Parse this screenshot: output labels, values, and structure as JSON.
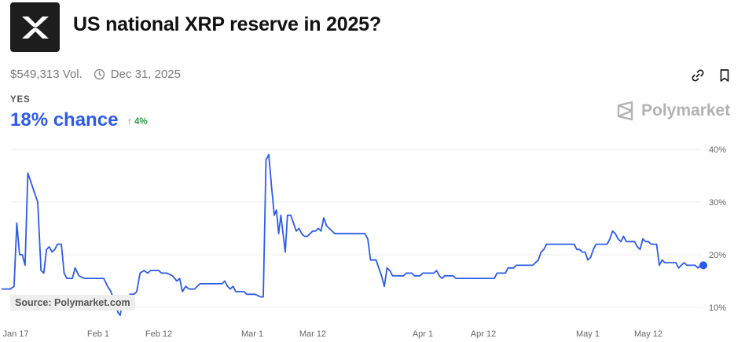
{
  "market": {
    "title": "US national XRP reserve in 2025?",
    "volume": "$549,313 Vol.",
    "end_date": "Dec 31, 2025",
    "outcome_label": "YES",
    "chance": "18% chance",
    "change": "4%",
    "brand": "Polymarket",
    "source": "Source: Polymarket.com",
    "logo_icon": "xrp-logo-icon",
    "accent_color": "#2d5bea",
    "up_color": "#2f9e44"
  },
  "chart_data": {
    "type": "line",
    "title": "",
    "xlabel": "",
    "ylabel": "",
    "ylim": [
      8,
      41
    ],
    "ytick_values": [
      10,
      20,
      30,
      40
    ],
    "ytick_labels": [
      "10%",
      "20%",
      "30%",
      "40%"
    ],
    "xtick_days": [
      16,
      31,
      42,
      59,
      70,
      90,
      101,
      120,
      131
    ],
    "xtick_labels": [
      "Jan 17",
      "Feb 1",
      "Feb 12",
      "Mar 1",
      "Mar 12",
      "Apr 1",
      "Apr 12",
      "May 1",
      "May 12"
    ],
    "grid": true,
    "series": [
      {
        "values": [
          [
            13.5,
            13.5
          ],
          [
            15.0,
            13.5
          ],
          [
            15.7,
            14.0
          ],
          [
            16.2,
            26.0
          ],
          [
            16.7,
            20.0
          ],
          [
            17.2,
            20.0
          ],
          [
            17.7,
            18.0
          ],
          [
            18.2,
            35.5
          ],
          [
            20.0,
            30.0
          ],
          [
            20.6,
            17.0
          ],
          [
            21.1,
            16.5
          ],
          [
            21.6,
            21.0
          ],
          [
            22.1,
            21.5
          ],
          [
            22.6,
            20.5
          ],
          [
            23.1,
            21.0
          ],
          [
            23.6,
            22.0
          ],
          [
            24.3,
            22.0
          ],
          [
            24.8,
            16.5
          ],
          [
            25.3,
            15.5
          ],
          [
            26.3,
            15.5
          ],
          [
            26.8,
            17.5
          ],
          [
            27.5,
            16.0
          ],
          [
            28.5,
            15.5
          ],
          [
            32.0,
            15.5
          ],
          [
            32.7,
            14.0
          ],
          [
            33.3,
            13.0
          ],
          [
            34.0,
            11.0
          ],
          [
            34.6,
            9.0
          ],
          [
            35.0,
            8.5
          ],
          [
            35.5,
            12.0
          ],
          [
            36.3,
            11.5
          ],
          [
            36.8,
            12.5
          ],
          [
            37.5,
            12.5
          ],
          [
            38.0,
            13.0
          ],
          [
            38.6,
            16.5
          ],
          [
            39.3,
            17.0
          ],
          [
            40.0,
            16.5
          ],
          [
            40.5,
            17.0
          ],
          [
            42.0,
            17.0
          ],
          [
            42.5,
            16.5
          ],
          [
            43.5,
            16.5
          ],
          [
            44.5,
            16.0
          ],
          [
            45.3,
            15.0
          ],
          [
            45.8,
            15.5
          ],
          [
            46.3,
            13.0
          ],
          [
            46.9,
            14.0
          ],
          [
            47.5,
            13.5
          ],
          [
            48.5,
            13.5
          ],
          [
            49.5,
            14.5
          ],
          [
            53.5,
            14.5
          ],
          [
            54.0,
            15.0
          ],
          [
            54.5,
            14.0
          ],
          [
            55.0,
            13.5
          ],
          [
            55.5,
            14.0
          ],
          [
            56.0,
            13.0
          ],
          [
            57.5,
            13.0
          ],
          [
            58.0,
            12.5
          ],
          [
            59.5,
            12.5
          ],
          [
            60.5,
            12.0
          ],
          [
            61.0,
            12.0
          ],
          [
            61.5,
            38.0
          ],
          [
            62.0,
            39.0
          ],
          [
            62.5,
            33.0
          ],
          [
            63.0,
            27.5
          ],
          [
            63.4,
            28.5
          ],
          [
            63.8,
            24.0
          ],
          [
            64.2,
            27.5
          ],
          [
            64.6,
            24.0
          ],
          [
            65.0,
            20.5
          ],
          [
            65.4,
            27.5
          ],
          [
            66.0,
            27.5
          ],
          [
            66.5,
            26.0
          ],
          [
            67.0,
            24.5
          ],
          [
            67.5,
            25.0
          ],
          [
            68.0,
            24.0
          ],
          [
            68.5,
            23.5
          ],
          [
            69.0,
            23.5
          ],
          [
            69.5,
            24.0
          ],
          [
            70.0,
            24.5
          ],
          [
            70.5,
            24.5
          ],
          [
            71.0,
            25.0
          ],
          [
            71.5,
            24.5
          ],
          [
            72.0,
            27.0
          ],
          [
            72.5,
            25.5
          ],
          [
            73.0,
            25.0
          ],
          [
            73.5,
            24.5
          ],
          [
            74.0,
            24.0
          ],
          [
            79.5,
            24.0
          ],
          [
            80.0,
            23.0
          ],
          [
            80.5,
            19.0
          ],
          [
            81.5,
            19.0
          ],
          [
            82.0,
            17.5
          ],
          [
            82.5,
            16.0
          ],
          [
            83.0,
            14.0
          ],
          [
            83.5,
            17.5
          ],
          [
            84.0,
            17.0
          ],
          [
            84.5,
            16.0
          ],
          [
            86.5,
            16.0
          ],
          [
            87.0,
            16.5
          ],
          [
            88.0,
            16.5
          ],
          [
            88.5,
            16.0
          ],
          [
            89.5,
            16.0
          ],
          [
            90.0,
            16.5
          ],
          [
            92.0,
            16.5
          ],
          [
            92.5,
            17.0
          ],
          [
            93.0,
            16.0
          ],
          [
            93.5,
            15.5
          ],
          [
            94.0,
            16.0
          ],
          [
            95.5,
            16.0
          ],
          [
            96.0,
            15.5
          ],
          [
            103.0,
            15.5
          ],
          [
            103.5,
            16.5
          ],
          [
            105.0,
            16.5
          ],
          [
            105.5,
            17.5
          ],
          [
            106.5,
            17.5
          ],
          [
            107.0,
            18.0
          ],
          [
            110.0,
            18.0
          ],
          [
            111.0,
            19.0
          ],
          [
            111.5,
            20.5
          ],
          [
            112.0,
            21.0
          ],
          [
            112.5,
            22.0
          ],
          [
            117.5,
            22.0
          ],
          [
            118.0,
            21.0
          ],
          [
            118.5,
            21.0
          ],
          [
            119.0,
            20.5
          ],
          [
            119.5,
            20.5
          ],
          [
            120.0,
            19.0
          ],
          [
            120.5,
            19.5
          ],
          [
            121.0,
            21.0
          ],
          [
            121.5,
            22.0
          ],
          [
            123.5,
            22.0
          ],
          [
            124.0,
            23.0
          ],
          [
            124.5,
            24.5
          ],
          [
            125.0,
            24.0
          ],
          [
            125.5,
            23.0
          ],
          [
            126.0,
            22.5
          ],
          [
            126.5,
            23.5
          ],
          [
            127.0,
            22.5
          ],
          [
            128.5,
            22.5
          ],
          [
            129.0,
            21.5
          ],
          [
            129.5,
            21.0
          ],
          [
            130.0,
            23.0
          ],
          [
            130.5,
            22.5
          ],
          [
            131.0,
            22.5
          ],
          [
            131.5,
            22.0
          ],
          [
            132.5,
            22.0
          ],
          [
            133.0,
            18.0
          ],
          [
            133.5,
            19.0
          ],
          [
            134.0,
            18.5
          ],
          [
            136.0,
            18.5
          ],
          [
            136.5,
            17.5
          ],
          [
            137.0,
            18.0
          ],
          [
            137.5,
            18.5
          ],
          [
            138.0,
            18.0
          ],
          [
            139.5,
            18.0
          ],
          [
            140.0,
            17.5
          ],
          [
            140.5,
            18.0
          ],
          [
            141.0,
            18.0
          ]
        ]
      }
    ]
  }
}
